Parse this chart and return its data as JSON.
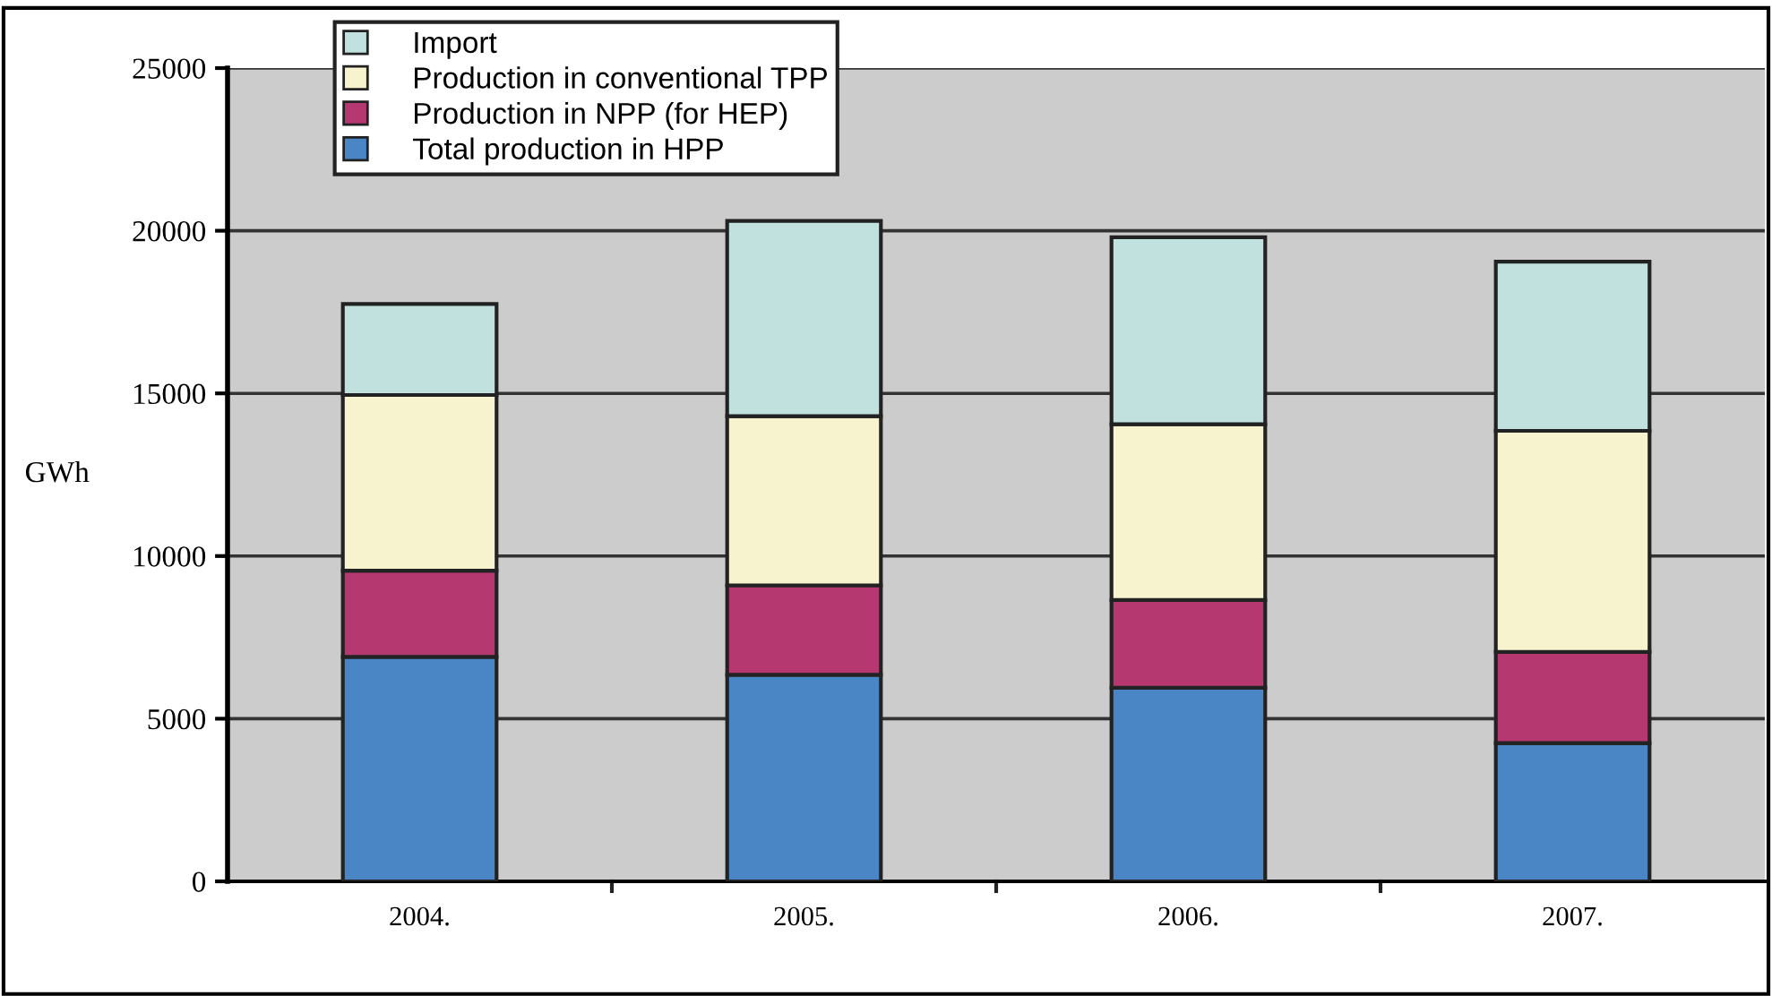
{
  "chart_data": {
    "type": "bar",
    "stacked": true,
    "ylabel": "GWh",
    "categories": [
      "2004.",
      "2005.",
      "2006.",
      "2007."
    ],
    "series": [
      {
        "name": "Total production in HPP",
        "color": "#4a86c5",
        "values": [
          6900,
          6350,
          5950,
          4250
        ]
      },
      {
        "name": "Production in NPP (for HEP)",
        "color": "#b63870",
        "values": [
          2650,
          2750,
          2700,
          2800
        ]
      },
      {
        "name": "Production in conventional TPP",
        "color": "#f8f3cf",
        "values": [
          5400,
          5200,
          5400,
          6800
        ]
      },
      {
        "name": "Import",
        "color": "#c1e1df",
        "values": [
          2800,
          6000,
          5750,
          5200
        ]
      }
    ],
    "ylim": [
      0,
      25000
    ],
    "yticks": [
      0,
      5000,
      10000,
      15000,
      20000,
      25000
    ],
    "grid": "y",
    "legend": "top left"
  }
}
